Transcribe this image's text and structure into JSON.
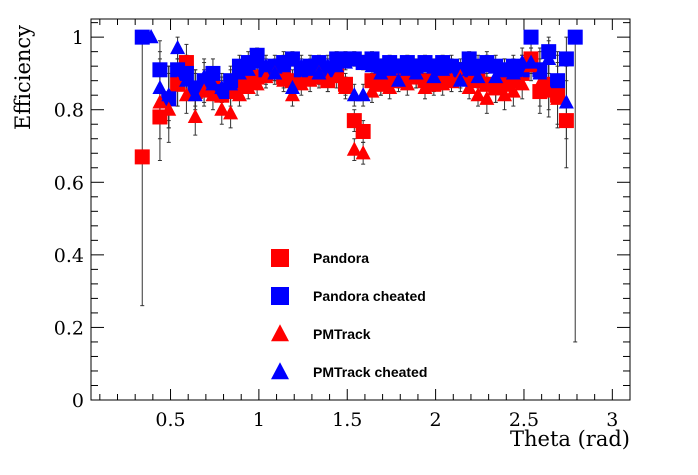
{
  "chart_data": {
    "type": "scatter",
    "title": "",
    "xlabel": "Theta (rad)",
    "ylabel": "Efficiency",
    "xlim": [
      0.05,
      3.1
    ],
    "ylim": [
      0,
      1.05
    ],
    "x_ticks": [
      0.5,
      1,
      1.5,
      2,
      2.5,
      3
    ],
    "x_tick_labels": [
      "0.5",
      "1",
      "1.5",
      "2",
      "2.5",
      "3"
    ],
    "y_ticks": [
      0,
      0.2,
      0.4,
      0.6,
      0.8,
      1
    ],
    "y_tick_labels": [
      "0",
      "0.2",
      "0.4",
      "0.6",
      "0.8",
      "1"
    ],
    "grid": false,
    "legend_position": "bottom-center",
    "series": [
      {
        "name": "Pandora",
        "marker": "square",
        "color": "#ff0000",
        "points": [
          [
            0.34,
            0.67,
            0.41,
            0.33
          ],
          [
            0.44,
            0.78,
            0.12,
            0.14
          ],
          [
            0.49,
            0.83,
            0.08,
            0.09
          ],
          [
            0.54,
            0.87,
            0.06,
            0.07
          ],
          [
            0.59,
            0.93,
            0.04,
            0.05
          ],
          [
            0.64,
            0.85,
            0.05,
            0.06
          ],
          [
            0.69,
            0.86,
            0.04,
            0.05
          ],
          [
            0.74,
            0.87,
            0.04,
            0.04
          ],
          [
            0.79,
            0.84,
            0.04,
            0.04
          ],
          [
            0.84,
            0.85,
            0.04,
            0.04
          ],
          [
            0.89,
            0.87,
            0.03,
            0.04
          ],
          [
            0.94,
            0.88,
            0.03,
            0.03
          ],
          [
            0.99,
            0.89,
            0.03,
            0.03
          ],
          [
            1.04,
            0.9,
            0.03,
            0.03
          ],
          [
            1.09,
            0.91,
            0.03,
            0.03
          ],
          [
            1.14,
            0.89,
            0.03,
            0.03
          ],
          [
            1.19,
            0.88,
            0.03,
            0.03
          ],
          [
            1.24,
            0.89,
            0.03,
            0.03
          ],
          [
            1.29,
            0.9,
            0.03,
            0.03
          ],
          [
            1.34,
            0.89,
            0.03,
            0.03
          ],
          [
            1.39,
            0.88,
            0.03,
            0.03
          ],
          [
            1.44,
            0.9,
            0.02,
            0.03
          ],
          [
            1.49,
            0.87,
            0.03,
            0.03
          ],
          [
            1.54,
            0.77,
            0.03,
            0.03
          ],
          [
            1.59,
            0.74,
            0.03,
            0.03
          ],
          [
            1.64,
            0.88,
            0.03,
            0.03
          ],
          [
            1.69,
            0.87,
            0.03,
            0.03
          ],
          [
            1.74,
            0.89,
            0.03,
            0.03
          ],
          [
            1.79,
            0.88,
            0.03,
            0.03
          ],
          [
            1.84,
            0.9,
            0.03,
            0.03
          ],
          [
            1.89,
            0.89,
            0.03,
            0.03
          ],
          [
            1.94,
            0.88,
            0.03,
            0.03
          ],
          [
            1.99,
            0.87,
            0.03,
            0.03
          ],
          [
            2.04,
            0.89,
            0.03,
            0.03
          ],
          [
            2.09,
            0.88,
            0.03,
            0.03
          ],
          [
            2.14,
            0.9,
            0.03,
            0.03
          ],
          [
            2.19,
            0.89,
            0.03,
            0.03
          ],
          [
            2.24,
            0.88,
            0.03,
            0.03
          ],
          [
            2.29,
            0.87,
            0.03,
            0.03
          ],
          [
            2.34,
            0.86,
            0.04,
            0.04
          ],
          [
            2.39,
            0.87,
            0.04,
            0.04
          ],
          [
            2.44,
            0.88,
            0.04,
            0.04
          ],
          [
            2.49,
            0.9,
            0.04,
            0.05
          ],
          [
            2.54,
            0.94,
            0.04,
            0.05
          ],
          [
            2.59,
            0.85,
            0.06,
            0.07
          ],
          [
            2.64,
            0.87,
            0.07,
            0.08
          ],
          [
            2.69,
            0.84,
            0.08,
            0.09
          ],
          [
            2.74,
            0.77,
            0.13,
            0.15
          ]
        ]
      },
      {
        "name": "Pandora cheated",
        "marker": "square",
        "color": "#0000ff",
        "points": [
          [
            0.34,
            1.0,
            0.0,
            0.0
          ],
          [
            0.44,
            0.91,
            0.06,
            0.08
          ],
          [
            0.49,
            0.83,
            0.08,
            0.09
          ],
          [
            0.54,
            0.91,
            0.05,
            0.06
          ],
          [
            0.59,
            0.9,
            0.04,
            0.05
          ],
          [
            0.64,
            0.86,
            0.05,
            0.05
          ],
          [
            0.69,
            0.88,
            0.04,
            0.05
          ],
          [
            0.74,
            0.9,
            0.03,
            0.04
          ],
          [
            0.79,
            0.85,
            0.04,
            0.04
          ],
          [
            0.84,
            0.88,
            0.03,
            0.04
          ],
          [
            0.89,
            0.92,
            0.03,
            0.03
          ],
          [
            0.94,
            0.93,
            0.02,
            0.03
          ],
          [
            0.99,
            0.95,
            0.02,
            0.02
          ],
          [
            1.04,
            0.91,
            0.02,
            0.03
          ],
          [
            1.09,
            0.92,
            0.02,
            0.03
          ],
          [
            1.14,
            0.93,
            0.02,
            0.03
          ],
          [
            1.19,
            0.94,
            0.02,
            0.02
          ],
          [
            1.24,
            0.91,
            0.02,
            0.03
          ],
          [
            1.29,
            0.92,
            0.02,
            0.03
          ],
          [
            1.34,
            0.93,
            0.02,
            0.02
          ],
          [
            1.39,
            0.91,
            0.02,
            0.03
          ],
          [
            1.44,
            0.94,
            0.02,
            0.02
          ],
          [
            1.49,
            0.94,
            0.02,
            0.02
          ],
          [
            1.54,
            0.94,
            0.02,
            0.02
          ],
          [
            1.59,
            0.93,
            0.02,
            0.02
          ],
          [
            1.64,
            0.94,
            0.02,
            0.02
          ],
          [
            1.69,
            0.92,
            0.02,
            0.02
          ],
          [
            1.74,
            0.93,
            0.02,
            0.02
          ],
          [
            1.79,
            0.92,
            0.02,
            0.02
          ],
          [
            1.84,
            0.93,
            0.02,
            0.02
          ],
          [
            1.89,
            0.92,
            0.02,
            0.02
          ],
          [
            1.94,
            0.93,
            0.02,
            0.02
          ],
          [
            1.99,
            0.92,
            0.02,
            0.02
          ],
          [
            2.04,
            0.93,
            0.02,
            0.02
          ],
          [
            2.09,
            0.92,
            0.02,
            0.03
          ],
          [
            2.14,
            0.91,
            0.02,
            0.03
          ],
          [
            2.19,
            0.94,
            0.02,
            0.02
          ],
          [
            2.24,
            0.92,
            0.02,
            0.03
          ],
          [
            2.29,
            0.93,
            0.02,
            0.03
          ],
          [
            2.34,
            0.92,
            0.03,
            0.03
          ],
          [
            2.39,
            0.91,
            0.03,
            0.03
          ],
          [
            2.44,
            0.92,
            0.03,
            0.03
          ],
          [
            2.49,
            0.91,
            0.04,
            0.04
          ],
          [
            2.54,
            1.0,
            0.0,
            0.0
          ],
          [
            2.59,
            0.91,
            0.05,
            0.06
          ],
          [
            2.64,
            0.96,
            0.03,
            0.04
          ],
          [
            2.69,
            0.88,
            0.06,
            0.08
          ],
          [
            2.74,
            0.94,
            0.06,
            0.06
          ],
          [
            2.79,
            1.0,
            0.84,
            0.0
          ]
        ]
      },
      {
        "name": "PMTrack",
        "marker": "triangle",
        "color": "#ff0000",
        "points": [
          [
            0.44,
            0.82,
            0.1,
            0.12
          ],
          [
            0.49,
            0.8,
            0.09,
            0.1
          ],
          [
            0.54,
            0.87,
            0.06,
            0.07
          ],
          [
            0.59,
            0.84,
            0.05,
            0.06
          ],
          [
            0.64,
            0.78,
            0.05,
            0.06
          ],
          [
            0.69,
            0.85,
            0.04,
            0.05
          ],
          [
            0.74,
            0.84,
            0.04,
            0.05
          ],
          [
            0.79,
            0.8,
            0.04,
            0.05
          ],
          [
            0.84,
            0.79,
            0.04,
            0.05
          ],
          [
            0.89,
            0.84,
            0.03,
            0.04
          ],
          [
            0.94,
            0.86,
            0.03,
            0.04
          ],
          [
            0.99,
            0.87,
            0.03,
            0.03
          ],
          [
            1.04,
            0.89,
            0.03,
            0.03
          ],
          [
            1.09,
            0.9,
            0.03,
            0.03
          ],
          [
            1.14,
            0.88,
            0.03,
            0.03
          ],
          [
            1.19,
            0.84,
            0.03,
            0.03
          ],
          [
            1.24,
            0.87,
            0.03,
            0.03
          ],
          [
            1.29,
            0.88,
            0.03,
            0.03
          ],
          [
            1.34,
            0.9,
            0.03,
            0.03
          ],
          [
            1.39,
            0.88,
            0.03,
            0.03
          ],
          [
            1.44,
            0.89,
            0.03,
            0.03
          ],
          [
            1.49,
            0.86,
            0.03,
            0.03
          ],
          [
            1.54,
            0.69,
            0.03,
            0.03
          ],
          [
            1.59,
            0.68,
            0.03,
            0.03
          ],
          [
            1.64,
            0.85,
            0.03,
            0.03
          ],
          [
            1.69,
            0.87,
            0.03,
            0.03
          ],
          [
            1.74,
            0.86,
            0.03,
            0.03
          ],
          [
            1.79,
            0.88,
            0.03,
            0.03
          ],
          [
            1.84,
            0.87,
            0.03,
            0.03
          ],
          [
            1.89,
            0.89,
            0.03,
            0.03
          ],
          [
            1.94,
            0.86,
            0.03,
            0.03
          ],
          [
            1.99,
            0.88,
            0.03,
            0.03
          ],
          [
            2.04,
            0.87,
            0.03,
            0.03
          ],
          [
            2.09,
            0.88,
            0.03,
            0.03
          ],
          [
            2.14,
            0.89,
            0.03,
            0.03
          ],
          [
            2.19,
            0.86,
            0.03,
            0.03
          ],
          [
            2.24,
            0.84,
            0.03,
            0.04
          ],
          [
            2.29,
            0.83,
            0.04,
            0.04
          ],
          [
            2.34,
            0.86,
            0.04,
            0.04
          ],
          [
            2.39,
            0.84,
            0.04,
            0.04
          ],
          [
            2.44,
            0.85,
            0.04,
            0.05
          ],
          [
            2.49,
            0.87,
            0.04,
            0.05
          ],
          [
            2.54,
            0.92,
            0.04,
            0.05
          ],
          [
            2.59,
            0.87,
            0.06,
            0.07
          ],
          [
            2.64,
            0.85,
            0.07,
            0.08
          ],
          [
            2.69,
            0.83,
            0.08,
            0.09
          ]
        ]
      },
      {
        "name": "PMTrack cheated",
        "marker": "triangle",
        "color": "#0000ff",
        "points": [
          [
            0.39,
            1.0,
            0.0,
            0.0
          ],
          [
            0.44,
            0.86,
            0.08,
            0.1
          ],
          [
            0.49,
            0.84,
            0.07,
            0.08
          ],
          [
            0.54,
            0.97,
            0.03,
            0.03
          ],
          [
            0.59,
            0.88,
            0.05,
            0.06
          ],
          [
            0.64,
            0.84,
            0.05,
            0.06
          ],
          [
            0.69,
            0.89,
            0.04,
            0.05
          ],
          [
            0.74,
            0.87,
            0.04,
            0.04
          ],
          [
            0.79,
            0.86,
            0.04,
            0.04
          ],
          [
            0.84,
            0.87,
            0.03,
            0.04
          ],
          [
            0.89,
            0.9,
            0.03,
            0.03
          ],
          [
            0.94,
            0.91,
            0.02,
            0.03
          ],
          [
            0.99,
            0.93,
            0.02,
            0.03
          ],
          [
            1.04,
            0.92,
            0.02,
            0.03
          ],
          [
            1.09,
            0.9,
            0.02,
            0.03
          ],
          [
            1.14,
            0.92,
            0.02,
            0.03
          ],
          [
            1.19,
            0.86,
            0.03,
            0.03
          ],
          [
            1.24,
            0.92,
            0.02,
            0.03
          ],
          [
            1.29,
            0.91,
            0.02,
            0.03
          ],
          [
            1.34,
            0.9,
            0.02,
            0.03
          ],
          [
            1.39,
            0.92,
            0.02,
            0.03
          ],
          [
            1.44,
            0.92,
            0.02,
            0.02
          ],
          [
            1.49,
            0.93,
            0.02,
            0.02
          ],
          [
            1.54,
            0.84,
            0.03,
            0.03
          ],
          [
            1.59,
            0.84,
            0.03,
            0.03
          ],
          [
            1.64,
            0.92,
            0.02,
            0.02
          ],
          [
            1.69,
            0.9,
            0.02,
            0.02
          ],
          [
            1.74,
            0.91,
            0.02,
            0.02
          ],
          [
            1.79,
            0.88,
            0.02,
            0.03
          ],
          [
            1.84,
            0.91,
            0.02,
            0.02
          ],
          [
            1.89,
            0.9,
            0.02,
            0.02
          ],
          [
            1.94,
            0.92,
            0.02,
            0.02
          ],
          [
            1.99,
            0.89,
            0.02,
            0.03
          ],
          [
            2.04,
            0.91,
            0.02,
            0.02
          ],
          [
            2.09,
            0.92,
            0.02,
            0.02
          ],
          [
            2.14,
            0.88,
            0.03,
            0.03
          ],
          [
            2.19,
            0.91,
            0.02,
            0.03
          ],
          [
            2.24,
            0.89,
            0.03,
            0.03
          ],
          [
            2.29,
            0.92,
            0.03,
            0.03
          ],
          [
            2.34,
            0.89,
            0.03,
            0.03
          ],
          [
            2.39,
            0.91,
            0.03,
            0.03
          ],
          [
            2.44,
            0.9,
            0.03,
            0.04
          ],
          [
            2.49,
            0.93,
            0.03,
            0.04
          ],
          [
            2.54,
            0.93,
            0.03,
            0.04
          ],
          [
            2.59,
            0.9,
            0.05,
            0.06
          ],
          [
            2.64,
            0.94,
            0.04,
            0.05
          ],
          [
            2.69,
            0.88,
            0.06,
            0.07
          ],
          [
            2.74,
            0.82,
            0.1,
            0.12
          ]
        ]
      }
    ]
  }
}
